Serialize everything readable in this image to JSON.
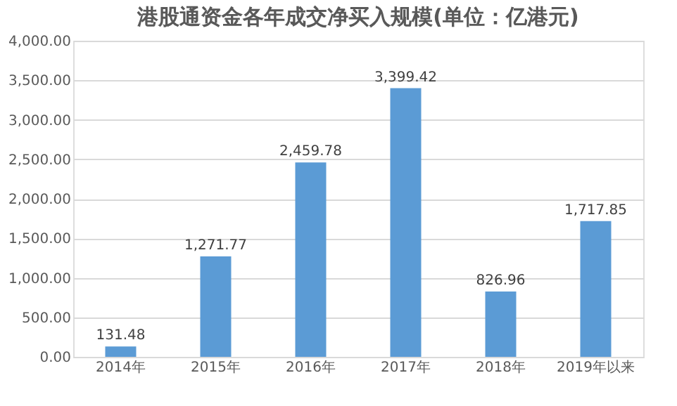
{
  "chart_data": {
    "type": "bar",
    "title": "港股通资金各年成交净买入规模(单位：亿港元)",
    "categories": [
      "2014年",
      "2015年",
      "2016年",
      "2017年",
      "2018年",
      "2019年以来"
    ],
    "values": [
      131.48,
      1271.77,
      2459.78,
      3399.42,
      826.96,
      1717.85
    ],
    "color": "#5b9bd5",
    "ylim": [
      0,
      4000
    ],
    "yticks": [
      {
        "value": 0,
        "label": "0.00"
      },
      {
        "value": 500,
        "label": "500.00"
      },
      {
        "value": 1000,
        "label": "1,000.00"
      },
      {
        "value": 1500,
        "label": "1,500.00"
      },
      {
        "value": 2000,
        "label": "2,000.00"
      },
      {
        "value": 2500,
        "label": "2,500.00"
      },
      {
        "value": 3000,
        "label": "3,000.00"
      },
      {
        "value": 3500,
        "label": "3,500.00"
      },
      {
        "value": 4000,
        "label": "4,000.00"
      }
    ],
    "value_labels": [
      "131.48",
      "1,271.77",
      "2,459.78",
      "3,399.42",
      "826.96",
      "1,717.85"
    ],
    "grid": "y"
  }
}
